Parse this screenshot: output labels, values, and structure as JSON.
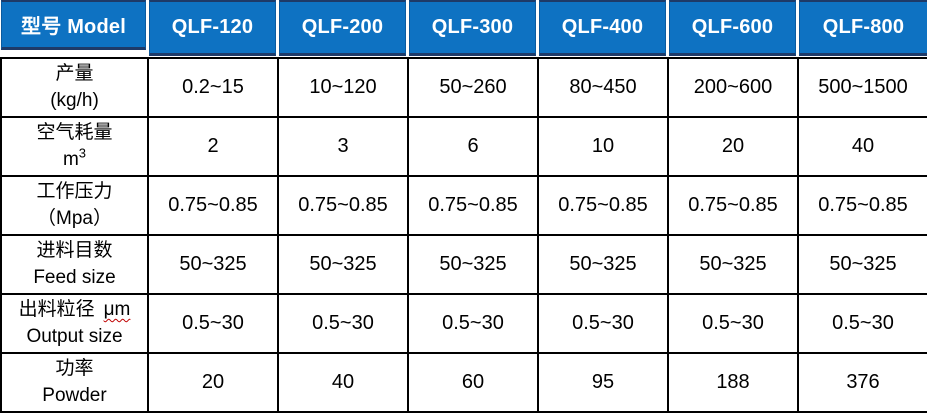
{
  "colors": {
    "header_blue": "#0e72c2",
    "header_cell_edge": "#0b5a9e",
    "header_navy_border": "#1e3a68",
    "grid_line": "#000000",
    "spellcheck_red": "#c00000",
    "header_text": "#ffffff",
    "body_text": "#000000"
  },
  "table": {
    "header": {
      "model_label": "型号 Model",
      "models": [
        "QLF-120",
        "QLF-200",
        "QLF-300",
        "QLF-400",
        "QLF-600",
        "QLF-800"
      ]
    },
    "rows": [
      {
        "line1": "产量",
        "line2": "(kg/h)",
        "values": [
          "0.2~15",
          "10~120",
          "50~260",
          "80~450",
          "200~600",
          "500~1500"
        ]
      },
      {
        "line1": "空气耗量",
        "line2_base": "m",
        "line2_sup": "3",
        "values": [
          "2",
          "3",
          "6",
          "10",
          "20",
          "40"
        ]
      },
      {
        "line1": "工作压力",
        "line2": "（Mpa）",
        "values": [
          "0.75~0.85",
          "0.75~0.85",
          "0.75~0.85",
          "0.75~0.85",
          "0.75~0.85",
          "0.75~0.85"
        ]
      },
      {
        "line1": "进料目数",
        "line2": "Feed size",
        "values": [
          "50~325",
          "50~325",
          "50~325",
          "50~325",
          "50~325",
          "50~325"
        ]
      },
      {
        "line1": "出料粒径",
        "line1_unit": "μm",
        "line2": "Output size",
        "values": [
          "0.5~30",
          "0.5~30",
          "0.5~30",
          "0.5~30",
          "0.5~30",
          "0.5~30"
        ]
      },
      {
        "line1": "功率",
        "line2": "Powder",
        "values": [
          "20",
          "40",
          "60",
          "95",
          "188",
          "376"
        ]
      }
    ]
  }
}
